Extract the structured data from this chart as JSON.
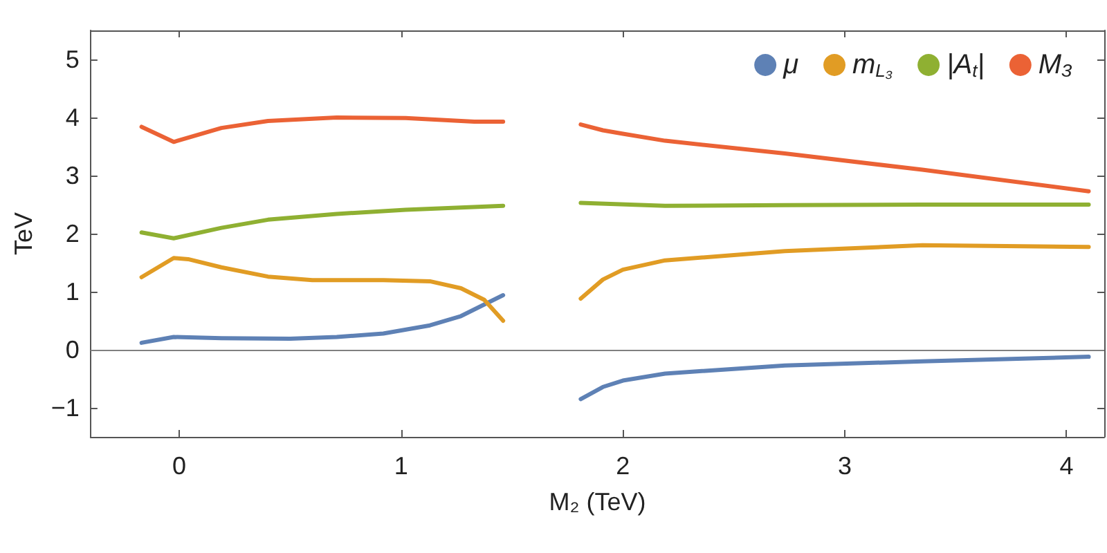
{
  "chart_data": {
    "type": "line",
    "xlabel": "M₂ (TeV)",
    "ylabel": "TeV",
    "xlim": [
      -0.4,
      4.17
    ],
    "ylim": [
      -1.5,
      5.5
    ],
    "xticks": [
      0,
      1,
      2,
      3,
      4
    ],
    "yticks": [
      -1,
      0,
      1,
      2,
      3,
      4,
      5
    ],
    "grid": false,
    "legend": "top right",
    "marker": "none",
    "line_style": "solid",
    "ref_lines": [
      {
        "axis": "y",
        "value": 0,
        "label": null,
        "color": "#808080"
      }
    ],
    "series": [
      {
        "name": "μ",
        "color": "#5e81b5",
        "x": [
          -0.17,
          -0.025,
          0.19,
          0.5,
          0.71,
          0.92,
          1.13,
          1.27,
          1.375,
          1.46,
          1.6,
          1.81,
          1.91,
          2.0,
          2.19,
          2.73,
          3.35,
          4.1
        ],
        "values": [
          0.12,
          0.22,
          0.2,
          0.19,
          0.22,
          0.28,
          0.42,
          0.58,
          0.78,
          0.94,
          null,
          -0.85,
          -0.64,
          -0.53,
          -0.41,
          -0.27,
          -0.2,
          -0.12
        ]
      },
      {
        "name": "m$_{L₃}$",
        "color": "#e19c24",
        "x": [
          -0.17,
          -0.025,
          0.04,
          0.19,
          0.4,
          0.6,
          0.92,
          1.13,
          1.27,
          1.375,
          1.46,
          1.6,
          1.81,
          1.91,
          2.0,
          2.19,
          2.73,
          3.35,
          4.1
        ],
        "values": [
          1.25,
          1.58,
          1.56,
          1.42,
          1.26,
          1.2,
          1.2,
          1.18,
          1.06,
          0.86,
          0.5,
          null,
          0.88,
          1.21,
          1.38,
          1.54,
          1.7,
          1.8,
          1.77
        ]
      },
      {
        "name": "|A$_{t}$|",
        "color": "#8fb032",
        "x": [
          -0.17,
          -0.025,
          0.19,
          0.4,
          0.71,
          1.02,
          1.46,
          1.6,
          1.81,
          2.19,
          2.73,
          3.35,
          4.1
        ],
        "values": [
          2.02,
          1.92,
          2.1,
          2.24,
          2.34,
          2.41,
          2.48,
          null,
          2.53,
          2.48,
          2.49,
          2.5,
          2.5
        ]
      },
      {
        "name": "M₃",
        "color": "#eb6235",
        "x": [
          -0.17,
          -0.025,
          0.19,
          0.4,
          0.71,
          1.02,
          1.33,
          1.46,
          1.6,
          1.81,
          1.91,
          2.0,
          2.19,
          2.73,
          3.35,
          4.1
        ],
        "values": [
          3.84,
          3.58,
          3.82,
          3.94,
          4.0,
          3.99,
          3.93,
          3.93,
          null,
          3.88,
          3.78,
          3.72,
          3.6,
          3.38,
          3.1,
          2.73
        ]
      }
    ]
  }
}
